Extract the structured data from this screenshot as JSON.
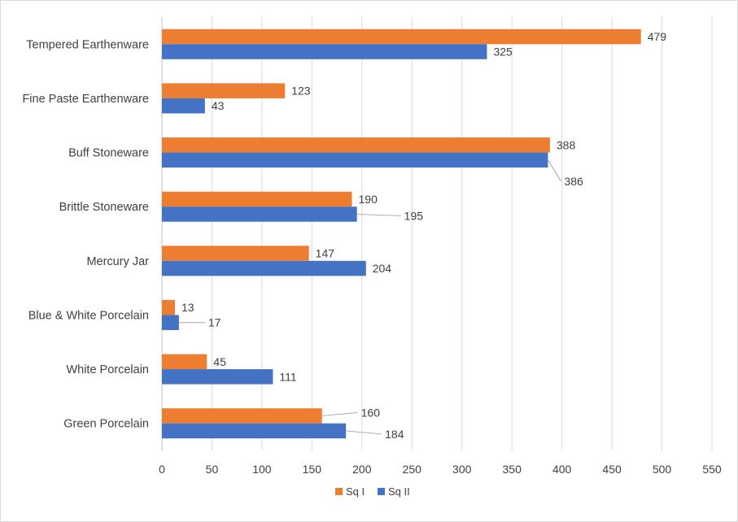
{
  "chart_data": {
    "type": "bar",
    "orientation": "horizontal",
    "categories": [
      "Tempered Earthenware",
      "Fine Paste Earthenware",
      "Buff Stoneware",
      "Brittle Stoneware",
      "Mercury Jar",
      "Blue & White Porcelain",
      "White Porcelain",
      "Green Porcelain"
    ],
    "series": [
      {
        "name": "Sq I",
        "color": "#ED7D31",
        "values": [
          479,
          123,
          388,
          190,
          147,
          13,
          45,
          160
        ]
      },
      {
        "name": "Sq II",
        "color": "#4472C4",
        "values": [
          325,
          43,
          386,
          195,
          204,
          17,
          111,
          184
        ]
      }
    ],
    "xlim": [
      0,
      550
    ],
    "xticks": [
      "0",
      "50",
      "100",
      "150",
      "200",
      "250",
      "300",
      "350",
      "400",
      "450",
      "500",
      "550"
    ],
    "grid": true,
    "legend": "bottom",
    "title": "",
    "xlabel": "",
    "ylabel": ""
  }
}
